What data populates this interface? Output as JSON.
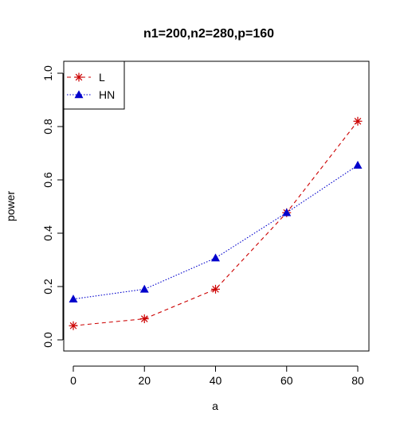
{
  "chart_data": {
    "type": "line",
    "title": "n1=200,n2=280,p=160",
    "xlabel": "a",
    "ylabel": "power",
    "x": [
      0,
      20,
      40,
      60,
      80
    ],
    "xlim": [
      0,
      80
    ],
    "ylim": [
      0,
      1
    ],
    "xticks": [
      "0",
      "20",
      "40",
      "60",
      "80"
    ],
    "yticks": [
      "0.0",
      "0.2",
      "0.4",
      "0.6",
      "0.8",
      "1.0"
    ],
    "grid": false,
    "legend_position": "top-left",
    "series": [
      {
        "name": "L",
        "values": [
          0.053,
          0.079,
          0.19,
          0.477,
          0.82
        ],
        "color": "#cc0000",
        "line_style": "dashed",
        "marker": "asterisk"
      },
      {
        "name": "HN",
        "values": [
          0.153,
          0.19,
          0.307,
          0.477,
          0.655
        ],
        "color": "#0000cc",
        "line_style": "dotted",
        "marker": "triangle"
      }
    ]
  }
}
